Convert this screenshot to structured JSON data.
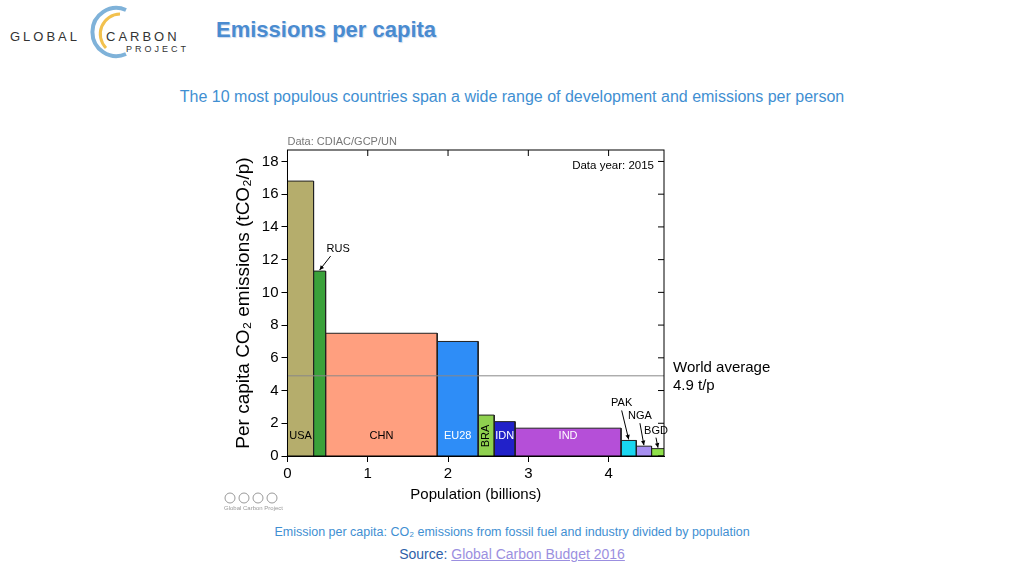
{
  "header": {
    "logo": [
      "GLOBAL",
      "CARBON",
      "PROJECT"
    ],
    "title": "Emissions per capita",
    "subtitle": "The 10 most populous countries span a wide range of development and emissions per person"
  },
  "chart_data": {
    "type": "bar",
    "source_note": "Data: CDIAC/GCP/UN",
    "annotation": "Data year: 2015",
    "x_label": "Population (billions)",
    "y_label": "Per capita CO₂ emissions (tCO₂/p)",
    "categories": [
      "USA",
      "RUS",
      "CHN",
      "EU28",
      "BRA",
      "IDN",
      "IND",
      "PAK",
      "NGA",
      "BGD"
    ],
    "populations": [
      0.325,
      0.15,
      1.39,
      0.51,
      0.2,
      0.26,
      1.32,
      0.19,
      0.19,
      0.16
    ],
    "values": [
      16.8,
      11.3,
      7.5,
      7.0,
      2.5,
      2.1,
      1.7,
      0.95,
      0.6,
      0.45
    ],
    "colors": [
      "#b5ad6c",
      "#3aa13a",
      "#ff9f7f",
      "#2e8df7",
      "#8fd14f",
      "#2121c9",
      "#b54fd8",
      "#19d6f0",
      "#a78ff0",
      "#8fe04a"
    ],
    "reference_line": {
      "value": 4.9,
      "label": [
        "World average",
        "4.9 t/p"
      ]
    },
    "xlim": [
      0,
      4.69
    ],
    "xticks": [
      0,
      1,
      2,
      3,
      4
    ],
    "ylim": [
      0,
      18.7
    ],
    "yticks": [
      0,
      2,
      4,
      6,
      8,
      10,
      12,
      14,
      16,
      18
    ],
    "grid": false,
    "credit": "Global Carbon Project"
  },
  "footer": {
    "note": "Emission per capita: CO₂ emissions from fossil fuel and industry divided by population",
    "source_label": "Source:",
    "source_link": "Global Carbon Budget 2016"
  }
}
